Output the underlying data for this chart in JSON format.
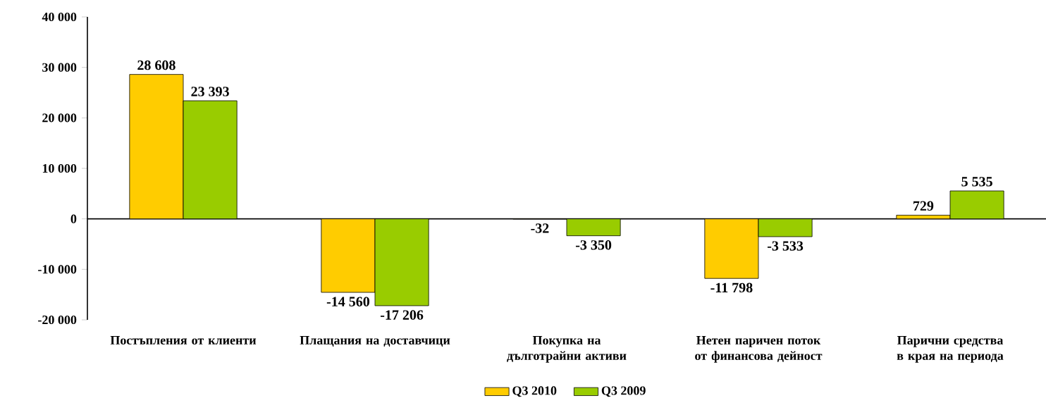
{
  "chart_data": {
    "type": "bar",
    "categories": [
      "Постъпления от клиенти",
      "Плащания на доставчици",
      "Покупка на дълготрайни активи",
      "Нетен паричен поток от финансова дейност",
      "Парични средства в края на периода"
    ],
    "series": [
      {
        "name": "Q3 2010",
        "color": "#ffcc00",
        "values": [
          28608,
          -14560,
          -32,
          -11798,
          729
        ],
        "value_labels": [
          "28 608",
          "-14 560",
          "-32",
          "-11 798",
          "729"
        ]
      },
      {
        "name": "Q3 2009",
        "color": "#99cc00",
        "values": [
          23393,
          -17206,
          -3350,
          -3533,
          5535
        ],
        "value_labels": [
          "23 393",
          "-17 206",
          "-3 350",
          "-3 533",
          "5 535"
        ]
      }
    ],
    "ylim": [
      -20000,
      40000
    ],
    "yticks": [
      {
        "value": -20000,
        "label": "-20 000"
      },
      {
        "value": -10000,
        "label": "-10 000"
      },
      0,
      {
        "value": 10000,
        "label": "10 000"
      },
      {
        "value": 20000,
        "label": "20 000"
      },
      {
        "value": 30000,
        "label": "30 000"
      },
      {
        "value": 40000,
        "label": "40 000"
      }
    ],
    "legend": "bottom"
  }
}
